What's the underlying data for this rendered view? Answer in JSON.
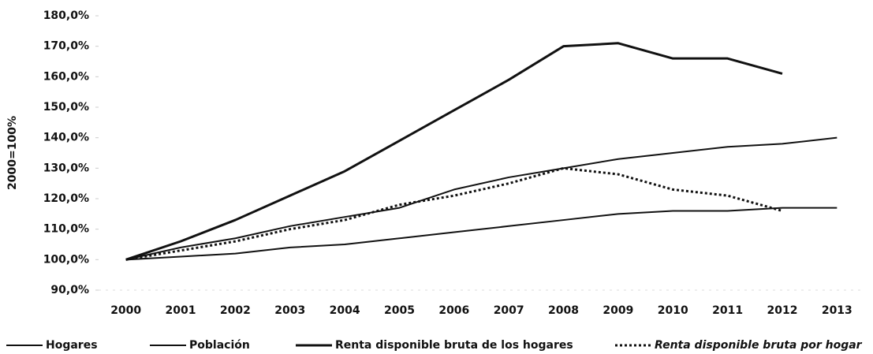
{
  "chart_data": {
    "type": "line",
    "ylabel": "2000=100%",
    "categories": [
      "2000",
      "2001",
      "2002",
      "2003",
      "2004",
      "2005",
      "2006",
      "2007",
      "2008",
      "2009",
      "2010",
      "2011",
      "2012",
      "2013"
    ],
    "series": [
      {
        "name": "Hogares",
        "color": "#111111",
        "style": "solid",
        "values": [
          100,
          104,
          107,
          111,
          114,
          117,
          123,
          127,
          130,
          133,
          135,
          137,
          138,
          140
        ]
      },
      {
        "name": "Población",
        "color": "#111111",
        "style": "solid",
        "values": [
          100,
          101,
          102,
          104,
          105,
          107,
          109,
          111,
          113,
          115,
          116,
          116,
          117,
          117
        ]
      },
      {
        "name": "Renta disponible bruta de los hogares",
        "color": "#111111",
        "style": "solid",
        "values": [
          100,
          106,
          113,
          121,
          129,
          139,
          149,
          159,
          170,
          171,
          166,
          166,
          161,
          null
        ]
      },
      {
        "name": "Renta disponible bruta por hogar",
        "color": "#111111",
        "style": "dotted",
        "values": [
          100,
          103,
          106,
          110,
          113,
          118,
          121,
          125,
          130,
          128,
          123,
          121,
          116,
          null
        ]
      }
    ],
    "ylim": [
      90,
      180
    ],
    "yticks": [
      {
        "value": 90,
        "label": "90,0%"
      },
      {
        "value": 100,
        "label": "100,0%"
      },
      {
        "value": 110,
        "label": "110,0%"
      },
      {
        "value": 120,
        "label": "120,0%"
      },
      {
        "value": 130,
        "label": "130,0%"
      },
      {
        "value": 140,
        "label": "140,0%"
      },
      {
        "value": 150,
        "label": "150,0%"
      },
      {
        "value": 160,
        "label": "160,0%"
      },
      {
        "value": 170,
        "label": "170,0%"
      },
      {
        "value": 180,
        "label": "180,0%"
      }
    ],
    "grid": false,
    "legend": "bottom"
  }
}
